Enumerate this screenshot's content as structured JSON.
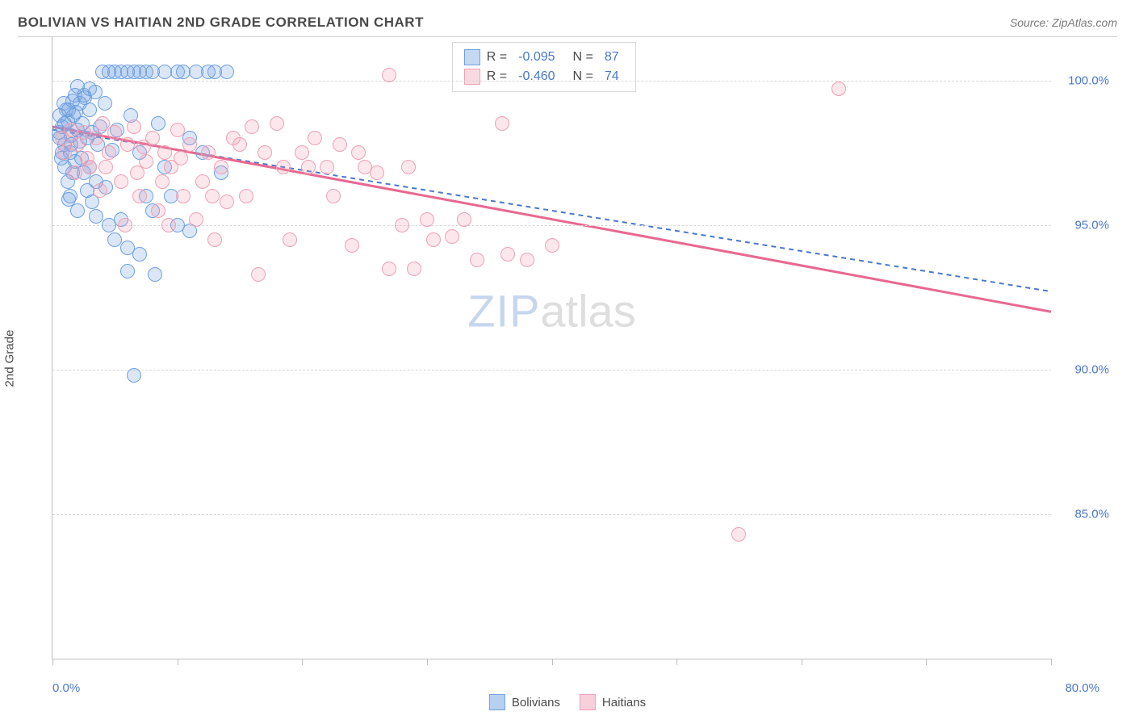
{
  "title": "BOLIVIAN VS HAITIAN 2ND GRADE CORRELATION CHART",
  "source_label": "Source: ZipAtlas.com",
  "y_axis_label": "2nd Grade",
  "watermark": {
    "part1": "ZIP",
    "part2": "atlas"
  },
  "chart": {
    "type": "scatter",
    "background_color": "#ffffff",
    "grid_color": "#d8d8d8",
    "axis_color": "#bfbfbf",
    "tick_label_color": "#4a78c8",
    "tick_fontsize": 15,
    "xlim": [
      0,
      80
    ],
    "ylim": [
      80,
      101.5
    ],
    "x_ticks": [
      0,
      10,
      20,
      30,
      40,
      50,
      60,
      70,
      80
    ],
    "x_tick_labels": {
      "min": "0.0%",
      "max": "80.0%"
    },
    "y_grid": [
      85,
      90,
      95,
      100
    ],
    "y_tick_labels": [
      "85.0%",
      "90.0%",
      "95.0%",
      "100.0%"
    ],
    "marker_radius": 9,
    "marker_stroke_width": 1.5,
    "marker_fill_opacity": 0.25,
    "series": [
      {
        "name": "Bolivians",
        "color": "#6fa0e0",
        "stroke": "#4a78c8",
        "R": "-0.095",
        "N": "87",
        "trend": {
          "x1": 0,
          "y1": 98.3,
          "x2": 80,
          "y2": 92.7,
          "dash": "6,5",
          "width": 2
        },
        "points": [
          [
            0.5,
            98.2
          ],
          [
            0.6,
            98.0
          ],
          [
            0.8,
            98.4
          ],
          [
            1.0,
            98.5
          ],
          [
            1.0,
            97.8
          ],
          [
            1.2,
            98.6
          ],
          [
            1.3,
            99.0
          ],
          [
            1.4,
            97.5
          ],
          [
            1.5,
            98.1
          ],
          [
            1.6,
            99.3
          ],
          [
            1.7,
            98.8
          ],
          [
            1.8,
            97.2
          ],
          [
            2.0,
            98.3
          ],
          [
            2.0,
            99.8
          ],
          [
            2.2,
            97.9
          ],
          [
            2.4,
            98.5
          ],
          [
            2.5,
            99.5
          ],
          [
            2.5,
            96.8
          ],
          [
            2.8,
            98.0
          ],
          [
            3.0,
            99.0
          ],
          [
            3.0,
            97.0
          ],
          [
            3.2,
            98.2
          ],
          [
            3.4,
            99.6
          ],
          [
            3.5,
            96.5
          ],
          [
            3.5,
            95.3
          ],
          [
            3.8,
            98.4
          ],
          [
            4.0,
            100.3
          ],
          [
            4.2,
            99.2
          ],
          [
            4.5,
            100.3
          ],
          [
            4.5,
            95.0
          ],
          [
            4.8,
            97.6
          ],
          [
            5.0,
            100.3
          ],
          [
            5.0,
            94.5
          ],
          [
            5.2,
            98.3
          ],
          [
            5.5,
            100.3
          ],
          [
            5.5,
            95.2
          ],
          [
            6.0,
            100.3
          ],
          [
            6.0,
            94.2
          ],
          [
            6.0,
            93.4
          ],
          [
            6.3,
            98.8
          ],
          [
            6.5,
            100.3
          ],
          [
            7.0,
            100.3
          ],
          [
            7.0,
            97.5
          ],
          [
            7.0,
            94.0
          ],
          [
            7.5,
            100.3
          ],
          [
            7.5,
            96.0
          ],
          [
            8.0,
            100.3
          ],
          [
            8.0,
            95.5
          ],
          [
            8.2,
            93.3
          ],
          [
            8.5,
            98.5
          ],
          [
            9.0,
            100.3
          ],
          [
            9.0,
            97.0
          ],
          [
            9.5,
            96.0
          ],
          [
            10.0,
            100.3
          ],
          [
            10.0,
            95.0
          ],
          [
            10.5,
            100.3
          ],
          [
            11.0,
            98.0
          ],
          [
            11.0,
            94.8
          ],
          [
            11.5,
            100.3
          ],
          [
            12.0,
            97.5
          ],
          [
            12.5,
            100.3
          ],
          [
            13.0,
            100.3
          ],
          [
            13.5,
            96.8
          ],
          [
            14.0,
            100.3
          ],
          [
            6.5,
            89.8
          ],
          [
            1.0,
            97.0
          ],
          [
            1.2,
            96.5
          ],
          [
            1.5,
            97.8
          ],
          [
            1.8,
            99.5
          ],
          [
            2.2,
            99.2
          ],
          [
            0.8,
            97.5
          ],
          [
            0.6,
            98.8
          ],
          [
            0.9,
            99.2
          ],
          [
            1.4,
            96.0
          ],
          [
            2.0,
            95.5
          ],
          [
            2.8,
            96.2
          ],
          [
            3.2,
            95.8
          ],
          [
            1.1,
            99.0
          ],
          [
            1.6,
            96.8
          ],
          [
            2.6,
            99.4
          ],
          [
            3.6,
            97.8
          ],
          [
            4.3,
            96.3
          ],
          [
            1.9,
            98.9
          ],
          [
            0.7,
            97.3
          ],
          [
            1.3,
            95.9
          ],
          [
            3.0,
            99.7
          ],
          [
            2.3,
            97.3
          ]
        ]
      },
      {
        "name": "Haitians",
        "color": "#f0a0b5",
        "stroke": "#e86890",
        "R": "-0.460",
        "N": "74",
        "trend": {
          "x1": 0,
          "y1": 98.4,
          "x2": 80,
          "y2": 92.0,
          "dash": "",
          "width": 3
        },
        "points": [
          [
            0.8,
            98.0
          ],
          [
            1.5,
            98.3
          ],
          [
            2.0,
            97.8
          ],
          [
            2.5,
            98.2
          ],
          [
            3.0,
            97.0
          ],
          [
            3.5,
            98.0
          ],
          [
            4.0,
            98.5
          ],
          [
            4.5,
            97.5
          ],
          [
            5.0,
            98.2
          ],
          [
            5.5,
            96.5
          ],
          [
            6.0,
            97.8
          ],
          [
            6.5,
            98.4
          ],
          [
            7.0,
            96.0
          ],
          [
            7.5,
            97.2
          ],
          [
            8.0,
            98.0
          ],
          [
            8.5,
            95.5
          ],
          [
            9.0,
            97.5
          ],
          [
            9.5,
            97.0
          ],
          [
            10.0,
            98.3
          ],
          [
            10.5,
            96.0
          ],
          [
            11.0,
            97.8
          ],
          [
            11.5,
            95.2
          ],
          [
            12.0,
            96.5
          ],
          [
            12.5,
            97.5
          ],
          [
            13.0,
            94.5
          ],
          [
            13.5,
            97.0
          ],
          [
            14.0,
            95.8
          ],
          [
            14.5,
            98.0
          ],
          [
            15.0,
            97.8
          ],
          [
            15.5,
            96.0
          ],
          [
            16.0,
            98.4
          ],
          [
            16.5,
            93.3
          ],
          [
            17.0,
            97.5
          ],
          [
            18.0,
            98.5
          ],
          [
            18.5,
            97.0
          ],
          [
            19.0,
            94.5
          ],
          [
            20.0,
            97.5
          ],
          [
            20.5,
            97.0
          ],
          [
            21.0,
            98.0
          ],
          [
            22.0,
            97.0
          ],
          [
            22.5,
            96.0
          ],
          [
            23.0,
            97.8
          ],
          [
            24.0,
            94.3
          ],
          [
            24.5,
            97.5
          ],
          [
            25.0,
            97.0
          ],
          [
            26.0,
            96.8
          ],
          [
            27.0,
            93.5
          ],
          [
            28.0,
            95.0
          ],
          [
            28.5,
            97.0
          ],
          [
            29.0,
            93.5
          ],
          [
            30.0,
            95.2
          ],
          [
            30.5,
            94.5
          ],
          [
            32.0,
            94.6
          ],
          [
            33.0,
            95.2
          ],
          [
            34.0,
            93.8
          ],
          [
            36.0,
            98.5
          ],
          [
            36.5,
            94.0
          ],
          [
            38.0,
            93.8
          ],
          [
            40.0,
            94.3
          ],
          [
            1.0,
            97.5
          ],
          [
            1.8,
            96.8
          ],
          [
            2.8,
            97.3
          ],
          [
            3.8,
            96.2
          ],
          [
            5.8,
            95.0
          ],
          [
            4.3,
            97.0
          ],
          [
            6.8,
            96.8
          ],
          [
            8.8,
            96.5
          ],
          [
            10.3,
            97.3
          ],
          [
            12.8,
            96.0
          ],
          [
            7.3,
            97.7
          ],
          [
            27.0,
            100.2
          ],
          [
            63.0,
            99.7
          ],
          [
            55.0,
            84.3
          ],
          [
            9.3,
            95.0
          ]
        ]
      }
    ]
  },
  "legend": [
    {
      "label": "Bolivians",
      "fill": "#b8d0f0",
      "stroke": "#6fa0e0"
    },
    {
      "label": "Haitians",
      "fill": "#f8d0dc",
      "stroke": "#f0a0b5"
    }
  ]
}
